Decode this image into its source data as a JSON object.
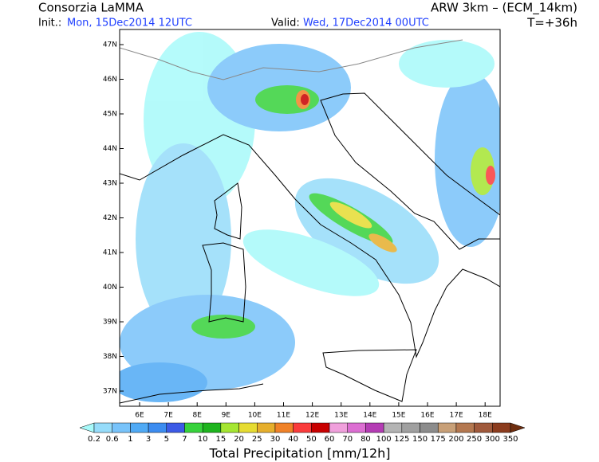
{
  "header": {
    "title": "Consorzia LaMMA",
    "model": "ARW 3km – (ECM_14km)",
    "init_label": "Init.:",
    "init_time": "Mon, 15Dec2014 12UTC",
    "valid_label": "Valid:",
    "valid_time": "Wed, 17Dec2014 00UTC",
    "forecast_step": "T=+36h"
  },
  "map": {
    "lat_labels": [
      "47N",
      "46N",
      "45N",
      "44N",
      "43N",
      "42N",
      "41N",
      "40N",
      "39N",
      "38N",
      "37N"
    ],
    "lon_labels": [
      "6E",
      "7E",
      "8E",
      "9E",
      "10E",
      "11E",
      "12E",
      "13E",
      "14E",
      "15E",
      "16E",
      "17E",
      "18E"
    ]
  },
  "legend": {
    "title": "Total Precipitation [mm/12h]",
    "labels": [
      0.2,
      0.6,
      1,
      3,
      5,
      7,
      10,
      15,
      20,
      25,
      30,
      40,
      50,
      60,
      70,
      80,
      100,
      125,
      150,
      175,
      200,
      250,
      300,
      350
    ],
    "colors": [
      "#a8fafa",
      "#96dcfa",
      "#78c3fa",
      "#50aaf5",
      "#3c8cf0",
      "#3c5ae6",
      "#37d23c",
      "#1eb41e",
      "#a5e632",
      "#e6dc32",
      "#e6af2d",
      "#f08228",
      "#fa3c3c",
      "#c80000",
      "#f0a0dc",
      "#dc6ed2",
      "#b43cb4",
      "#b4b4b4",
      "#a0a0a0",
      "#8c8c8c",
      "#c8a078",
      "#b47850",
      "#a05a3c",
      "#8c3c1e",
      "#6e2d0f"
    ]
  }
}
